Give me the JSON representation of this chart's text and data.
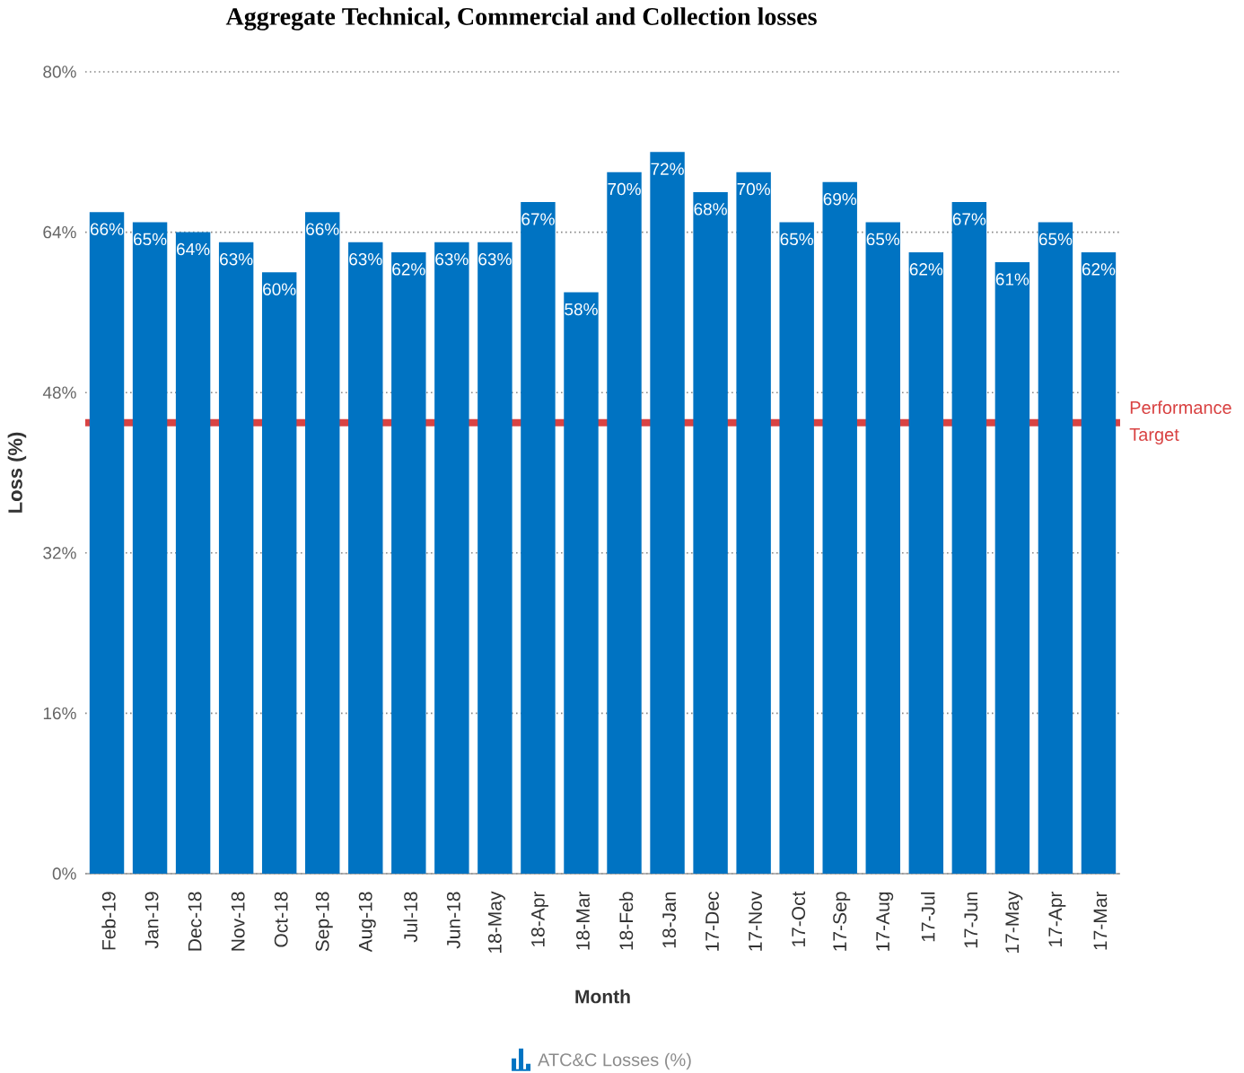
{
  "chart_data": {
    "type": "bar",
    "title": "Aggregate Technical, Commercial and Collection losses",
    "xlabel": "Month",
    "ylabel": "Loss (%)",
    "categories": [
      "Feb-19",
      "Jan-19",
      "Dec-18",
      "Nov-18",
      "Oct-18",
      "Sep-18",
      "Aug-18",
      "Jul-18",
      "Jun-18",
      "18-May",
      "18-Apr",
      "18-Mar",
      "18-Feb",
      "18-Jan",
      "17-Dec",
      "17-Nov",
      "17-Oct",
      "17-Sep",
      "17-Aug",
      "17-Jul",
      "17-Jun",
      "17-May",
      "17-Apr",
      "17-Mar"
    ],
    "series": [
      {
        "name": "ATC&C Losses (%)",
        "color": "#0073c2",
        "values": [
          66,
          65,
          64,
          63,
          60,
          66,
          63,
          62,
          63,
          63,
          67,
          58,
          70,
          72,
          68,
          70,
          65,
          69,
          65,
          62,
          67,
          61,
          65,
          62
        ],
        "value_labels": [
          "66%",
          "65%",
          "64%",
          "63%",
          "60%",
          "66%",
          "63%",
          "62%",
          "63%",
          "63%",
          "67%",
          "58%",
          "70%",
          "72%",
          "68%",
          "70%",
          "65%",
          "69%",
          "65%",
          "62%",
          "67%",
          "61%",
          "65%",
          "62%"
        ]
      }
    ],
    "ylim": [
      0,
      80
    ],
    "yticks": [
      {
        "value": 0,
        "label": "0%"
      },
      {
        "value": 16,
        "label": "16%"
      },
      {
        "value": 32,
        "label": "32%"
      },
      {
        "value": 48,
        "label": "48%"
      },
      {
        "value": 64,
        "label": "64%"
      },
      {
        "value": 80,
        "label": "80%"
      }
    ],
    "grid": "y",
    "legend": "bottom",
    "ref_lines": [
      {
        "axis": "y",
        "value": 45,
        "label": "Performance Target",
        "color": "#d94343"
      }
    ]
  }
}
